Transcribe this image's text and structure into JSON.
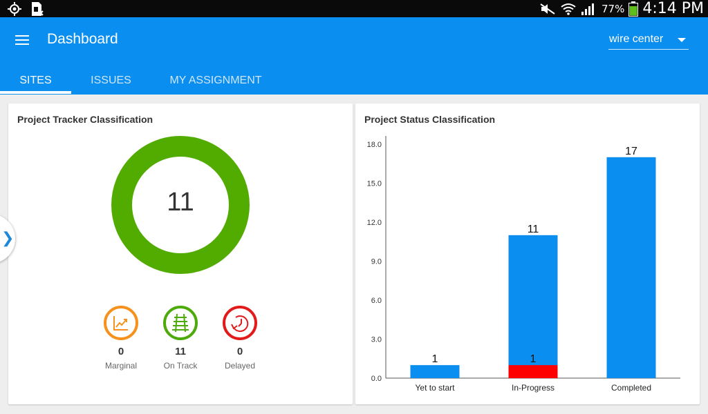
{
  "status_bar": {
    "battery_percent": "77%",
    "time": "4:14 PM",
    "icons": [
      "gps-icon",
      "sim-card-icon",
      "mute-icon",
      "wifi-icon",
      "signal-icon",
      "battery-icon"
    ]
  },
  "app_bar": {
    "title": "Dashboard",
    "menu_icon": "hamburger-icon",
    "location_select": {
      "value": "wire center"
    }
  },
  "tabs": [
    {
      "label": "SITES",
      "active": true
    },
    {
      "label": "ISSUES",
      "active": false
    },
    {
      "label": "MY ASSIGNMENT",
      "active": false
    }
  ],
  "tracker_card": {
    "title": "Project Tracker Classification",
    "total": "11",
    "stats": [
      {
        "count": "0",
        "label": "Marginal",
        "color": "#f7911e",
        "icon": "trend-chart-icon"
      },
      {
        "count": "11",
        "label": "On Track",
        "color": "#4caa0a",
        "icon": "railway-track-icon"
      },
      {
        "count": "0",
        "label": "Delayed",
        "color": "#e21a1a",
        "icon": "delayed-clock-icon"
      }
    ],
    "donut_color": "#52ac00"
  },
  "status_card": {
    "title": "Project Status Classification"
  },
  "chart_data": {
    "type": "bar",
    "stacked": true,
    "categories": [
      "Yet to start",
      "In-Progress",
      "Completed"
    ],
    "series": [
      {
        "values": [
          1,
          11,
          17
        ],
        "color": "#0a8ef0"
      },
      {
        "values": [
          0,
          1,
          0
        ],
        "color": "#ff0000"
      }
    ],
    "data_labels": {
      "series0": [
        "1",
        "11",
        "17"
      ],
      "series1": [
        "",
        "1",
        ""
      ]
    },
    "ylim": [
      0,
      18
    ],
    "yticks": [
      "0.0",
      "3.0",
      "6.0",
      "9.0",
      "12.0",
      "15.0",
      "18.0"
    ],
    "title": "",
    "xlabel": "",
    "ylabel": "",
    "grid": false
  }
}
